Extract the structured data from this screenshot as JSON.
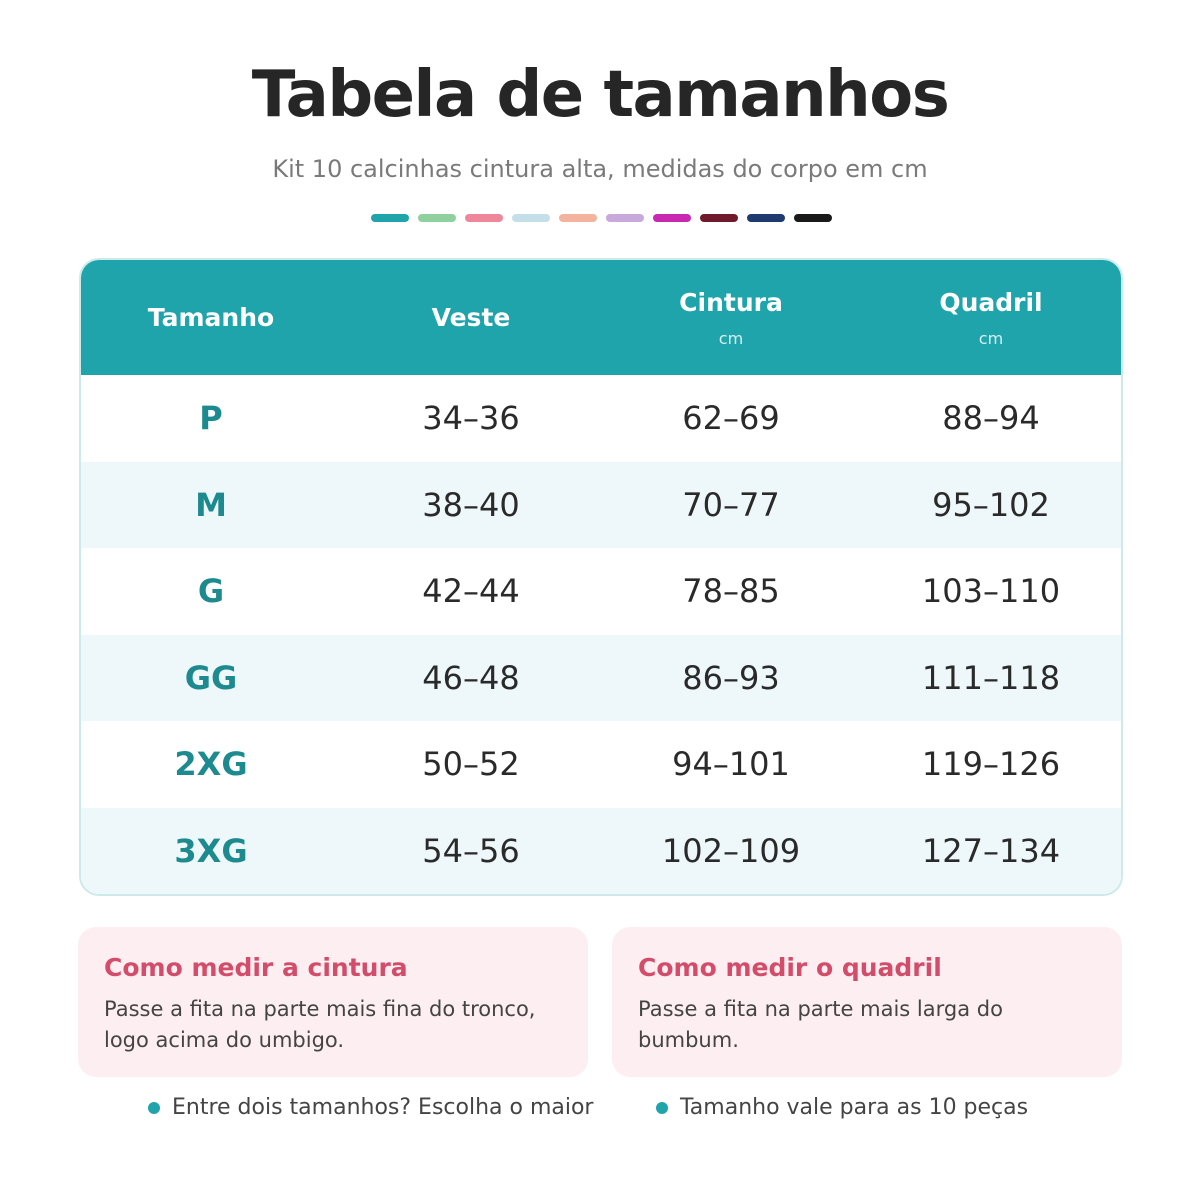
{
  "header": {
    "title": "Tabela de tamanhos",
    "subtitle": "Kit 10 calcinhas cintura alta, medidas do corpo em cm"
  },
  "table": {
    "columns": [
      {
        "label": "Tamanho"
      },
      {
        "label": "Veste"
      },
      {
        "label": "Cintura",
        "unit": "cm"
      },
      {
        "label": "Quadril",
        "unit": "cm"
      }
    ],
    "rows": [
      [
        "P",
        "34–36",
        "62–69",
        "88–94"
      ],
      [
        "M",
        "38–40",
        "70–77",
        "95–102"
      ],
      [
        "G",
        "42–44",
        "78–85",
        "103–110"
      ],
      [
        "GG",
        "46–48",
        "86–93",
        "111–118"
      ],
      [
        "2XG",
        "50–52",
        "94–101",
        "119–126"
      ],
      [
        "3XG",
        "54–56",
        "102–109",
        "127–134"
      ]
    ]
  },
  "cards": [
    {
      "title": "Como medir a cintura",
      "text": "Passe a fita na parte mais fina do tronco, logo acima do umbigo."
    },
    {
      "title": "Como medir o quadril",
      "text": "Passe a fita na parte mais larga do bumbum."
    }
  ],
  "notes": [
    "Entre dois tamanhos? Escolha o maior",
    "Tamanho vale para as 10 peças"
  ]
}
